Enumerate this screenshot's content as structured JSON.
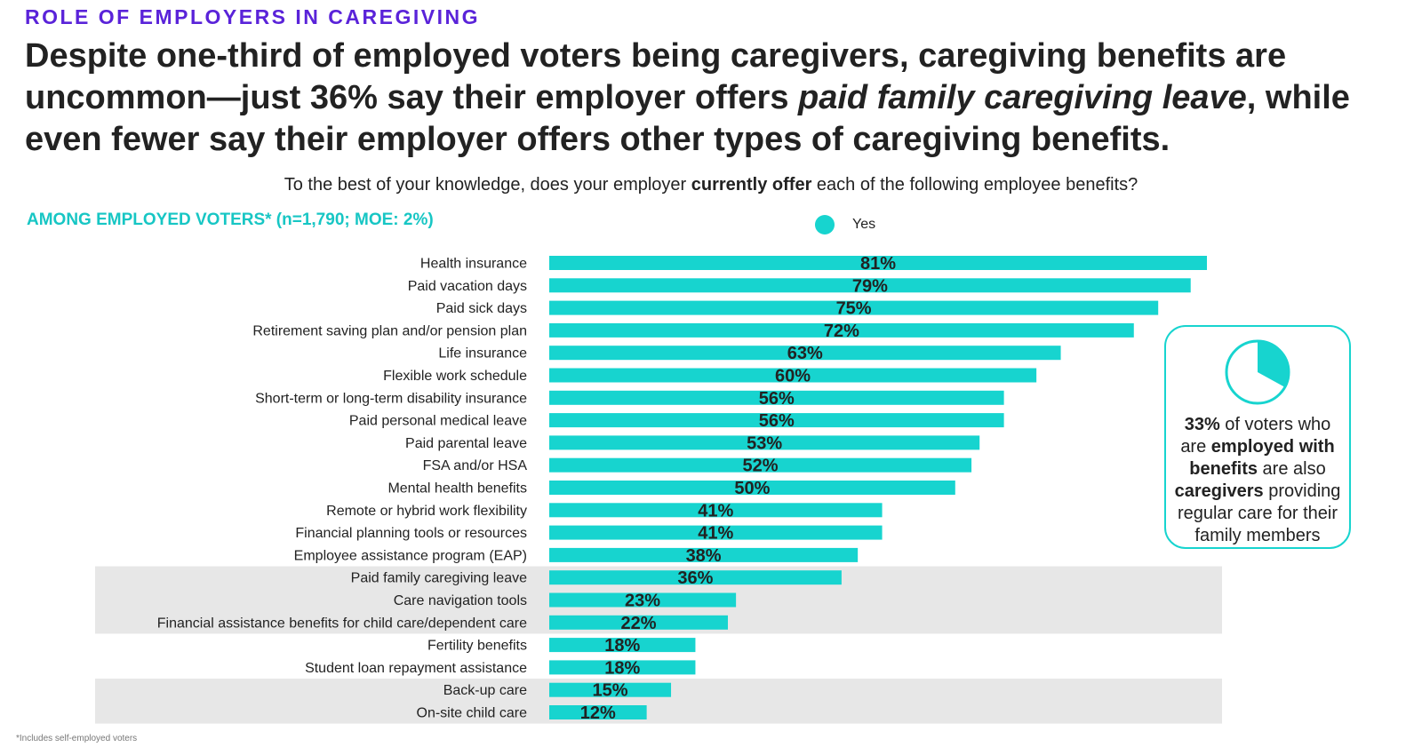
{
  "header": {
    "kicker": "ROLE OF EMPLOYERS IN CAREGIVING",
    "headline_part1": "Despite one-third of employed voters being caregivers, caregiving benefits are uncommon—just 36% say their employer offers ",
    "headline_emphasis": "paid family caregiving leave",
    "headline_part2": ", while even fewer say their employer offers other types of caregiving benefits."
  },
  "question": {
    "before": "To the best of your knowledge, does your employer ",
    "emphasis": "currently offer",
    "after": " each of the following employee benefits?"
  },
  "base_note": "AMONG EMPLOYED VOTERS* (n=1,790; MOE: 2%)",
  "footnote": "*Includes self-employed voters",
  "callout": {
    "pct": "33%",
    "t1": " of voters who are ",
    "b1": "employed with benefits",
    "t2": " are also ",
    "b2": "caregivers",
    "t3": " providing regular care for their family members",
    "pie_fraction": 0.33
  },
  "chart_data": {
    "type": "bar",
    "orientation": "horizontal",
    "categories": [
      "Health insurance",
      "Paid vacation days",
      "Paid sick days",
      "Retirement saving plan and/or pension plan",
      "Life insurance",
      "Flexible work schedule",
      "Short-term or long-term disability insurance",
      "Paid personal medical leave",
      "Paid parental leave",
      "FSA and/or HSA",
      "Mental health benefits",
      "Remote or hybrid work flexibility",
      "Financial planning tools or resources",
      "Employee assistance program (EAP)",
      "Paid family caregiving leave",
      "Care navigation tools",
      "Financial assistance benefits for child care/dependent care",
      "Fertility benefits",
      "Student loan repayment assistance",
      "Back-up care",
      "On-site child care"
    ],
    "series": [
      {
        "name": "Yes",
        "values": [
          81,
          79,
          75,
          72,
          63,
          60,
          56,
          56,
          53,
          52,
          50,
          41,
          41,
          38,
          36,
          23,
          22,
          18,
          18,
          15,
          12
        ],
        "color": "#17d4cf"
      }
    ],
    "value_labels": [
      "81%",
      "79%",
      "75%",
      "72%",
      "63%",
      "60%",
      "56%",
      "56%",
      "53%",
      "52%",
      "50%",
      "41%",
      "41%",
      "38%",
      "36%",
      "23%",
      "22%",
      "18%",
      "18%",
      "15%",
      "12%"
    ],
    "highlight_groups": [
      {
        "from": "Paid family caregiving leave",
        "to": "Financial assistance benefits for child care/dependent care"
      },
      {
        "from": "Back-up care",
        "to": "On-site child care"
      }
    ],
    "highlight_color": "#e7e7e7",
    "xlim": [
      0,
      100
    ],
    "legend": "top-center",
    "grid": false
  }
}
